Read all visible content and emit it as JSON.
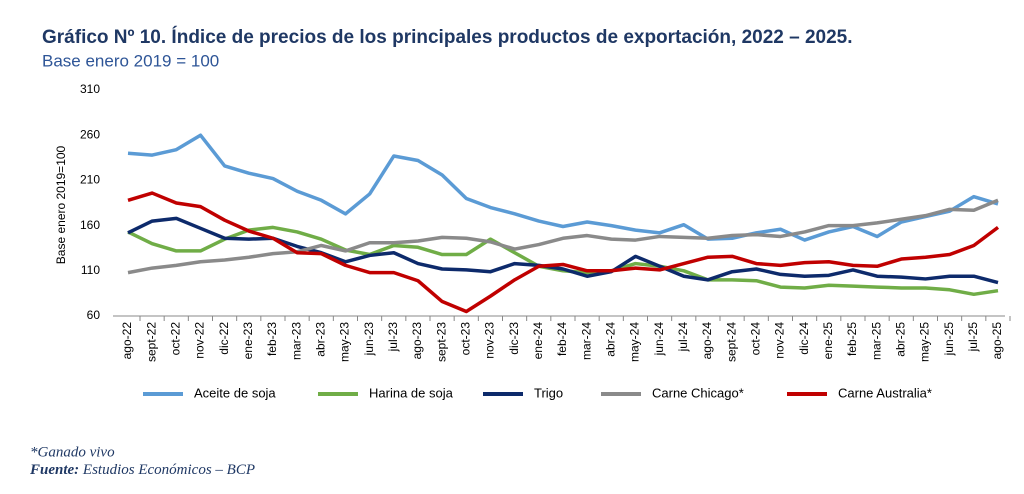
{
  "chart_data": {
    "type": "line",
    "title": "Gráfico Nº 10. Índice de precios de los principales productos de exportación, 2022 – 2025.",
    "subtitle": "Base enero 2019 = 100",
    "y_label": "Base enero 2019=100",
    "categories": [
      "ago-22",
      "sept-22",
      "oct-22",
      "nov-22",
      "dic-22",
      "ene-23",
      "feb-23",
      "mar-23",
      "abr-23",
      "may-23",
      "jun-23",
      "jul-23",
      "ago-23",
      "sept-23",
      "oct-23",
      "nov-23",
      "dic-23",
      "ene-24",
      "feb-24",
      "mar-24",
      "abr-24",
      "may-24",
      "jun-24",
      "jul-24",
      "ago-24",
      "sept-24",
      "oct-24",
      "nov-24",
      "dic-24",
      "ene-25",
      "feb-25",
      "mar-25",
      "abr-25",
      "may-25",
      "jun-25",
      "jul-25",
      "ago-25"
    ],
    "series": [
      {
        "name": "Aceite de soja",
        "color": "#5b9bd5",
        "values": [
          240,
          238,
          244,
          260,
          226,
          218,
          212,
          198,
          188,
          173,
          195,
          237,
          232,
          216,
          190,
          180,
          173,
          165,
          159,
          164,
          160,
          155,
          152,
          161,
          145,
          146,
          152,
          156,
          144,
          153,
          159,
          148,
          164,
          170,
          176,
          192,
          184
        ]
      },
      {
        "name": "Harina de soja",
        "color": "#70ad47",
        "values": [
          153,
          140,
          132,
          132,
          145,
          155,
          158,
          153,
          145,
          133,
          128,
          138,
          136,
          128,
          128,
          145,
          130,
          115,
          110,
          108,
          110,
          118,
          115,
          110,
          100,
          100,
          99,
          92,
          91,
          94,
          93,
          92,
          91,
          91,
          89,
          84,
          88
        ]
      },
      {
        "name": "Trigo",
        "color": "#0d2a6b",
        "values": [
          152,
          165,
          168,
          157,
          146,
          145,
          146,
          137,
          130,
          120,
          127,
          130,
          118,
          112,
          111,
          109,
          118,
          116,
          112,
          104,
          109,
          126,
          115,
          104,
          100,
          109,
          112,
          106,
          104,
          105,
          111,
          104,
          103,
          101,
          104,
          104,
          97
        ]
      },
      {
        "name": "Carne Chicago*",
        "color": "#8a8a8a",
        "values": [
          108,
          113,
          116,
          120,
          122,
          125,
          129,
          131,
          138,
          132,
          141,
          141,
          143,
          147,
          146,
          142,
          134,
          139,
          146,
          149,
          145,
          144,
          148,
          147,
          146,
          149,
          150,
          148,
          153,
          160,
          160,
          163,
          167,
          171,
          178,
          177,
          188
        ]
      },
      {
        "name": "Carne Australia*",
        "color": "#c00000",
        "values": [
          188,
          196,
          185,
          181,
          166,
          154,
          146,
          130,
          129,
          116,
          108,
          108,
          99,
          76,
          65,
          82,
          100,
          115,
          117,
          110,
          110,
          113,
          111,
          118,
          125,
          126,
          118,
          116,
          119,
          120,
          116,
          115,
          123,
          125,
          128,
          138,
          158
        ]
      }
    ],
    "ylim": [
      60,
      310
    ],
    "yticks": [
      60,
      110,
      160,
      210,
      260,
      310
    ],
    "grid": false,
    "footnote": "*Ganado vivo",
    "source_label": "Fuente:",
    "source_text": "Estudios Económicos – BCP"
  }
}
